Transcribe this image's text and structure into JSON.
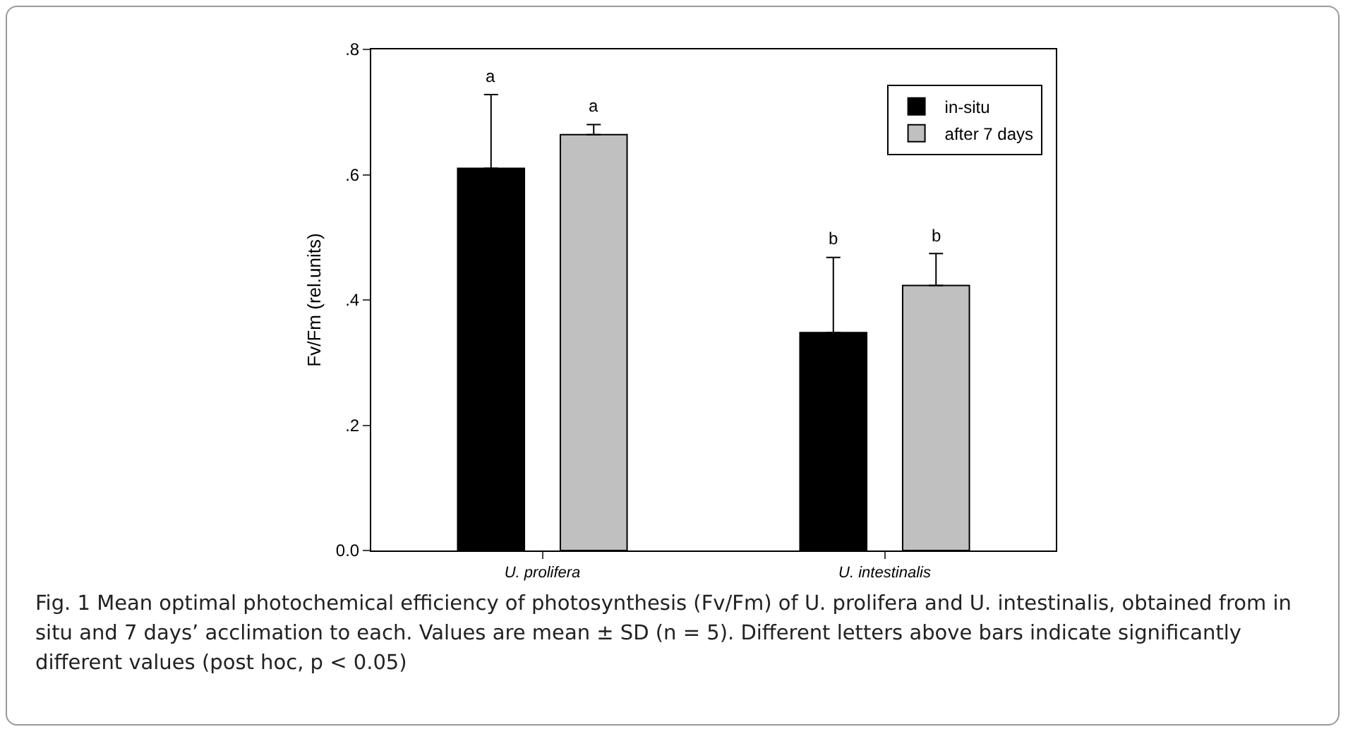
{
  "chart_data": {
    "type": "bar",
    "ylabel": "Fv/Fm (rel.units)",
    "categories": [
      "U. prolifera",
      "U. intestinalis"
    ],
    "series": [
      {
        "name": "in-situ",
        "color": "#000000",
        "values": [
          0.61,
          0.348
        ],
        "errors": [
          [
            0.61,
            0.728
          ],
          [
            0.348,
            0.468
          ]
        ]
      },
      {
        "name": "after 7 days",
        "color": "#c0c0c0",
        "values": [
          0.664,
          0.423
        ],
        "errors": [
          [
            0.664,
            0.68
          ],
          [
            0.423,
            0.474
          ]
        ]
      }
    ],
    "ylim": [
      0,
      0.8
    ],
    "yticks": [
      {
        "value": 0,
        "label": "0.0"
      },
      {
        "value": 0.2,
        "label": ".2"
      },
      {
        "value": 0.4,
        "label": ".4"
      },
      {
        "value": 0.6,
        "label": ".6"
      },
      {
        "value": 0.8,
        "label": ".8"
      }
    ],
    "grid": false,
    "legend": "top right",
    "annotations": [
      "a",
      "a",
      "b",
      "b",
      "Fig. 1  Mean optimal photochemical efficiency of photosynthesis (Fv/Fm) of U. prolifera and U. intestinalis, obtained from in situ and 7 days’ acclimation to each. Values are mean ± SD (n = 5). Different letters above bars indicate significantly different values (post hoc, p < 0.05)"
    ]
  }
}
